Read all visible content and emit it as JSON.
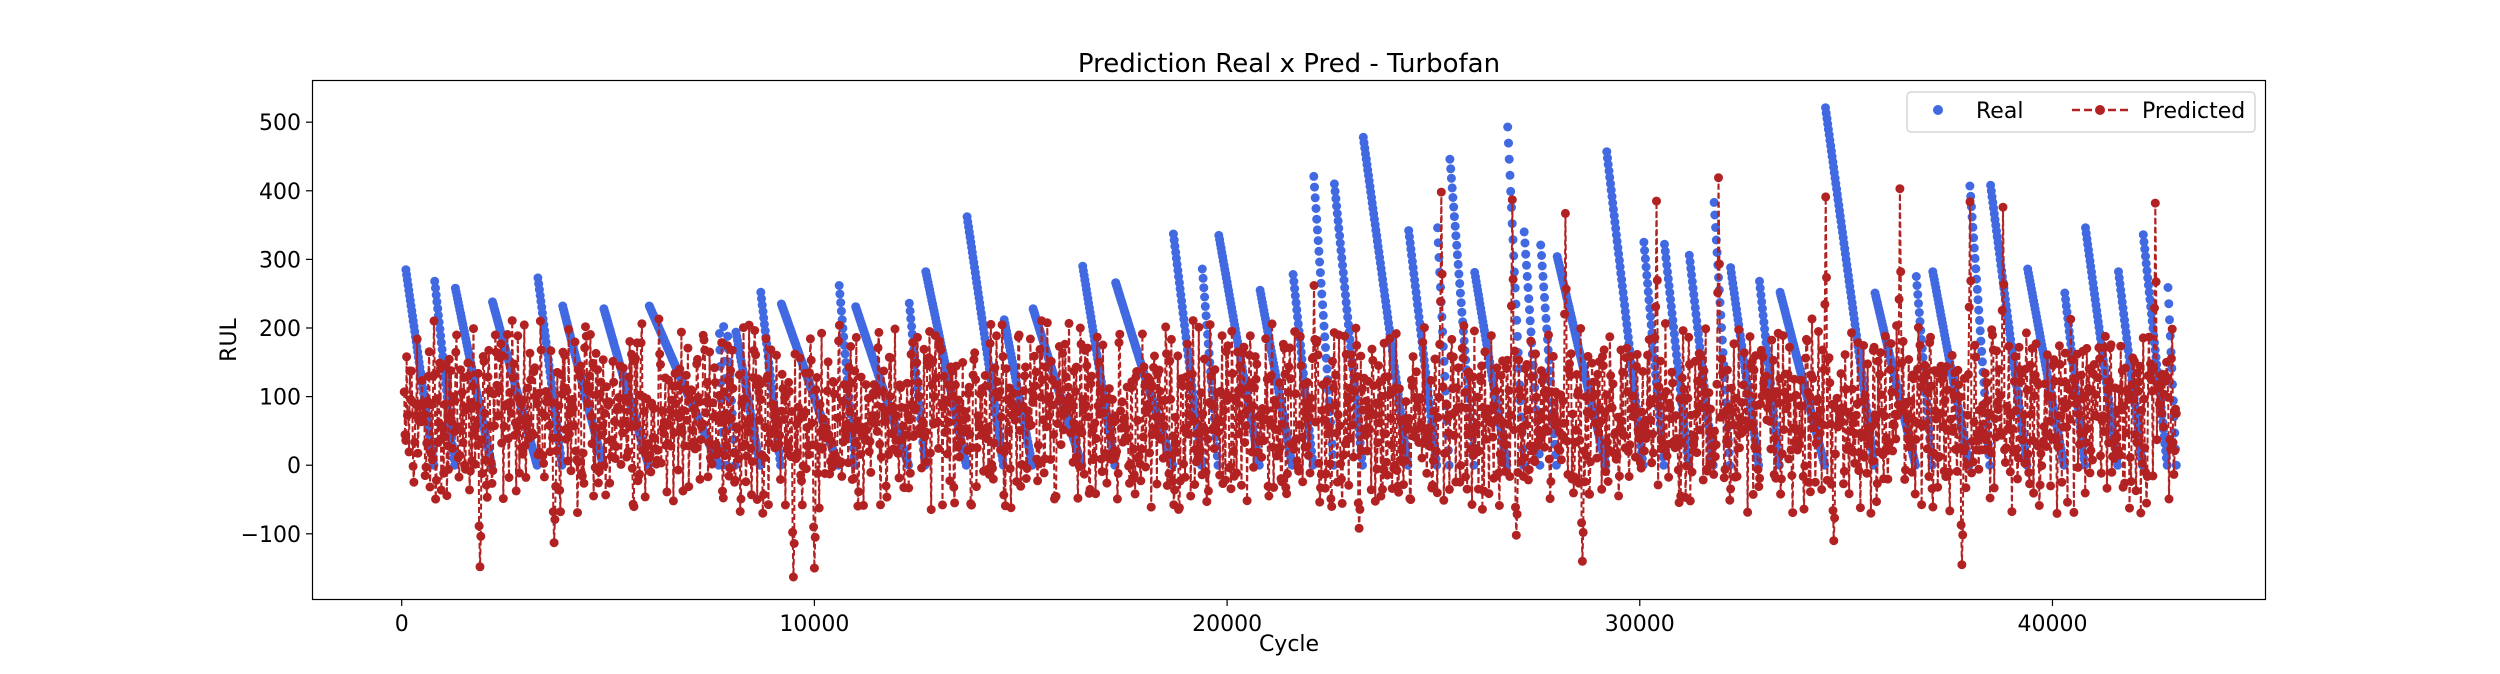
{
  "chart_data": {
    "type": "scatter",
    "title": "Prediction Real x Pred - Turbofan",
    "xlabel": "Cycle",
    "ylabel": "RUL",
    "xlim": [
      -2150,
      45150
    ],
    "ylim": [
      -195,
      560
    ],
    "xticks": [
      0,
      10000,
      20000,
      30000,
      40000
    ],
    "yticks": [
      -100,
      0,
      100,
      200,
      300,
      400,
      500
    ],
    "xtick_labels": [
      "0",
      "10000",
      "20000",
      "30000",
      "40000"
    ],
    "ytick_labels": [
      "−100",
      "0",
      "100",
      "200",
      "300",
      "400",
      "500"
    ],
    "grid": false,
    "legend": {
      "position": "top-right",
      "columns": 2
    },
    "colors": {
      "real": "#4169e1",
      "predicted": "#b22222"
    },
    "total_cycles": 43000,
    "series": [
      {
        "name": "Real",
        "style": "markers",
        "sawtooth_peaks": [
          {
            "x": 100,
            "y": 285
          },
          {
            "x": 800,
            "y": 268
          },
          {
            "x": 1300,
            "y": 258
          },
          {
            "x": 2200,
            "y": 238
          },
          {
            "x": 3300,
            "y": 273
          },
          {
            "x": 3900,
            "y": 232
          },
          {
            "x": 4900,
            "y": 228
          },
          {
            "x": 6000,
            "y": 232
          },
          {
            "x": 7700,
            "y": 192
          },
          {
            "x": 7800,
            "y": 202
          },
          {
            "x": 7900,
            "y": 188
          },
          {
            "x": 8100,
            "y": 194
          },
          {
            "x": 8700,
            "y": 252
          },
          {
            "x": 9200,
            "y": 235
          },
          {
            "x": 10600,
            "y": 262
          },
          {
            "x": 11000,
            "y": 231
          },
          {
            "x": 12300,
            "y": 236
          },
          {
            "x": 12700,
            "y": 282
          },
          {
            "x": 13700,
            "y": 362
          },
          {
            "x": 14600,
            "y": 212
          },
          {
            "x": 15300,
            "y": 228
          },
          {
            "x": 16500,
            "y": 290
          },
          {
            "x": 17300,
            "y": 266
          },
          {
            "x": 18700,
            "y": 337
          },
          {
            "x": 19400,
            "y": 286
          },
          {
            "x": 19800,
            "y": 335
          },
          {
            "x": 20800,
            "y": 255
          },
          {
            "x": 21600,
            "y": 278
          },
          {
            "x": 22100,
            "y": 421
          },
          {
            "x": 22600,
            "y": 410
          },
          {
            "x": 23300,
            "y": 478
          },
          {
            "x": 24400,
            "y": 342
          },
          {
            "x": 25100,
            "y": 346
          },
          {
            "x": 25400,
            "y": 446
          },
          {
            "x": 26000,
            "y": 281
          },
          {
            "x": 26800,
            "y": 493
          },
          {
            "x": 27200,
            "y": 340
          },
          {
            "x": 27600,
            "y": 321
          },
          {
            "x": 28000,
            "y": 304
          },
          {
            "x": 29200,
            "y": 457
          },
          {
            "x": 30100,
            "y": 325
          },
          {
            "x": 30600,
            "y": 322
          },
          {
            "x": 31200,
            "y": 306
          },
          {
            "x": 31800,
            "y": 383
          },
          {
            "x": 32200,
            "y": 288
          },
          {
            "x": 32900,
            "y": 268
          },
          {
            "x": 33400,
            "y": 252
          },
          {
            "x": 34500,
            "y": 521
          },
          {
            "x": 35700,
            "y": 251
          },
          {
            "x": 36700,
            "y": 275
          },
          {
            "x": 37100,
            "y": 282
          },
          {
            "x": 38000,
            "y": 407
          },
          {
            "x": 38500,
            "y": 408
          },
          {
            "x": 39400,
            "y": 286
          },
          {
            "x": 40300,
            "y": 251
          },
          {
            "x": 40800,
            "y": 346
          },
          {
            "x": 41600,
            "y": 282
          },
          {
            "x": 42200,
            "y": 336
          },
          {
            "x": 42800,
            "y": 259
          }
        ]
      },
      {
        "name": "Predicted",
        "style": "dashed-line-markers",
        "peaks": [
          {
            "x": 22100,
            "y": 262
          },
          {
            "x": 23200,
            "y": 396
          },
          {
            "x": 25200,
            "y": 398
          },
          {
            "x": 26900,
            "y": 387
          },
          {
            "x": 28200,
            "y": 367
          },
          {
            "x": 30400,
            "y": 385
          },
          {
            "x": 31900,
            "y": 419
          },
          {
            "x": 34500,
            "y": 391
          },
          {
            "x": 36300,
            "y": 403
          },
          {
            "x": 38000,
            "y": 384
          },
          {
            "x": 38800,
            "y": 376
          },
          {
            "x": 42500,
            "y": 382
          }
        ],
        "troughs": [
          {
            "x": 1900,
            "y": -148
          },
          {
            "x": 3700,
            "y": -113
          },
          {
            "x": 9500,
            "y": -163
          },
          {
            "x": 10000,
            "y": -150
          },
          {
            "x": 23200,
            "y": -92
          },
          {
            "x": 27000,
            "y": -102
          },
          {
            "x": 28600,
            "y": -140
          },
          {
            "x": 34700,
            "y": -110
          },
          {
            "x": 37800,
            "y": -145
          }
        ],
        "base_range": [
          -75,
          215
        ]
      }
    ]
  }
}
